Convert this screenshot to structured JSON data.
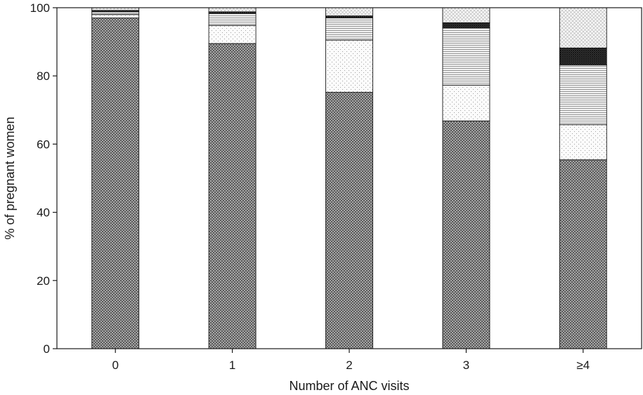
{
  "chart_data": {
    "type": "bar",
    "stacked": true,
    "title": "",
    "xlabel": "Number of ANC visits",
    "ylabel": "% of pregnant women",
    "categories": [
      "0",
      "1",
      "2",
      "3",
      "≥4"
    ],
    "ylim": [
      0,
      100
    ],
    "yticks": [
      0,
      20,
      40,
      60,
      80,
      100
    ],
    "grid": false,
    "legend": "none",
    "series": [
      {
        "values": [
          97.0,
          89.5,
          75.2,
          66.8,
          55.4
        ],
        "pattern": "dense-crosshatch"
      },
      {
        "values": [
          1.0,
          5.3,
          15.3,
          10.5,
          10.3
        ],
        "pattern": "sparse-dots"
      },
      {
        "values": [
          0.8,
          3.5,
          6.5,
          16.8,
          17.5
        ],
        "pattern": "horizontal-lines"
      },
      {
        "values": [
          0.4,
          0.5,
          0.6,
          1.5,
          5.0
        ],
        "pattern": "dark-crosshatch"
      },
      {
        "values": [
          0.8,
          1.2,
          2.4,
          4.4,
          11.8
        ],
        "pattern": "light-crosshatch"
      }
    ],
    "colors": {
      "stroke": "#1a1a1a",
      "background": "#ffffff"
    }
  }
}
